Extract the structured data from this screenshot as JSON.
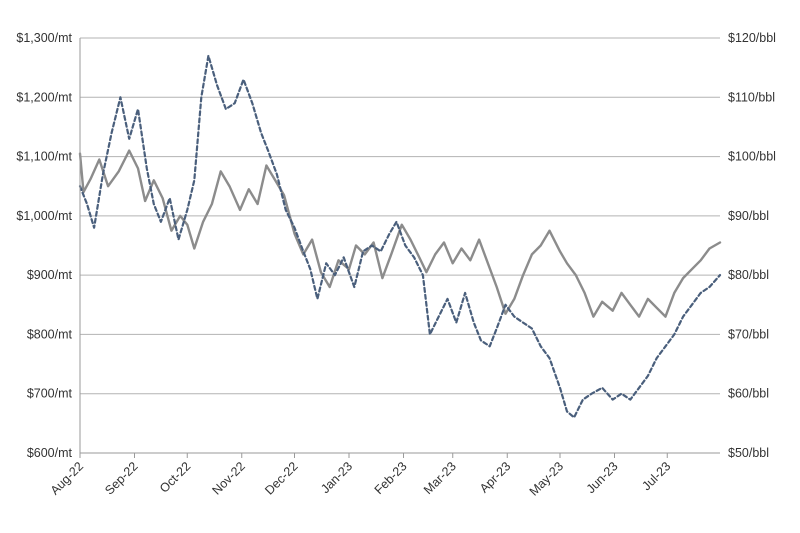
{
  "chart_data": {
    "type": "line",
    "title": "",
    "xlabel": "",
    "ylabel": "",
    "y2label": "",
    "x_tick_labels": [
      "Aug-22",
      "Sep-22",
      "Oct-22",
      "Nov-22",
      "Dec-22",
      "Jan-23",
      "Feb-23",
      "Mar-23",
      "Apr-23",
      "May-23",
      "Jun-23",
      "Jul-23"
    ],
    "x_range": [
      "2022-08-01",
      "2023-07-31"
    ],
    "y_left": {
      "ylim": [
        600,
        1300
      ],
      "tick_values": [
        600,
        700,
        800,
        900,
        1000,
        1100,
        1200,
        1300
      ],
      "tick_labels": [
        "$600/mt",
        "$700/mt",
        "$800/mt",
        "$900/mt",
        "$1,000/mt",
        "$1,100/mt",
        "$1,200/mt",
        "$1,300/mt"
      ]
    },
    "y_right": {
      "ylim": [
        50,
        120
      ],
      "tick_values": [
        50,
        60,
        70,
        80,
        90,
        100,
        110,
        120
      ],
      "tick_labels": [
        "$50/bbl",
        "$60/bbl",
        "$70/bbl",
        "$80/bbl",
        "$90/bbl",
        "$100/bbl",
        "$110/bbl",
        "$120/bbl"
      ]
    },
    "grid": true,
    "series": [
      {
        "style": "solid",
        "color": "#8c8c8c",
        "axis": "left",
        "points": [
          [
            "2022-08-01",
            1105
          ],
          [
            "2022-08-03",
            1040
          ],
          [
            "2022-08-07",
            1062
          ],
          [
            "2022-08-12",
            1095
          ],
          [
            "2022-08-17",
            1050
          ],
          [
            "2022-08-23",
            1075
          ],
          [
            "2022-08-29",
            1110
          ],
          [
            "2022-09-03",
            1080
          ],
          [
            "2022-09-07",
            1025
          ],
          [
            "2022-09-12",
            1060
          ],
          [
            "2022-09-17",
            1030
          ],
          [
            "2022-09-22",
            975
          ],
          [
            "2022-09-27",
            1000
          ],
          [
            "2022-10-01",
            985
          ],
          [
            "2022-10-05",
            945
          ],
          [
            "2022-10-10",
            990
          ],
          [
            "2022-10-15",
            1020
          ],
          [
            "2022-10-20",
            1075
          ],
          [
            "2022-10-25",
            1050
          ],
          [
            "2022-10-31",
            1010
          ],
          [
            "2022-11-05",
            1045
          ],
          [
            "2022-11-10",
            1020
          ],
          [
            "2022-11-15",
            1085
          ],
          [
            "2022-11-20",
            1060
          ],
          [
            "2022-11-25",
            1035
          ],
          [
            "2022-12-01",
            970
          ],
          [
            "2022-12-06",
            935
          ],
          [
            "2022-12-11",
            960
          ],
          [
            "2022-12-16",
            905
          ],
          [
            "2022-12-21",
            880
          ],
          [
            "2022-12-26",
            925
          ],
          [
            "2023-01-01",
            910
          ],
          [
            "2023-01-05",
            950
          ],
          [
            "2023-01-10",
            935
          ],
          [
            "2023-01-15",
            955
          ],
          [
            "2023-01-20",
            895
          ],
          [
            "2023-01-25",
            935
          ],
          [
            "2023-01-31",
            985
          ],
          [
            "2023-02-05",
            960
          ],
          [
            "2023-02-10",
            930
          ],
          [
            "2023-02-14",
            905
          ],
          [
            "2023-02-19",
            935
          ],
          [
            "2023-02-24",
            955
          ],
          [
            "2023-03-01",
            920
          ],
          [
            "2023-03-06",
            945
          ],
          [
            "2023-03-11",
            925
          ],
          [
            "2023-03-16",
            960
          ],
          [
            "2023-03-21",
            920
          ],
          [
            "2023-03-26",
            880
          ],
          [
            "2023-03-31",
            835
          ],
          [
            "2023-04-05",
            860
          ],
          [
            "2023-04-10",
            900
          ],
          [
            "2023-04-15",
            935
          ],
          [
            "2023-04-20",
            950
          ],
          [
            "2023-04-25",
            975
          ],
          [
            "2023-05-01",
            940
          ],
          [
            "2023-05-05",
            920
          ],
          [
            "2023-05-10",
            900
          ],
          [
            "2023-05-15",
            870
          ],
          [
            "2023-05-20",
            830
          ],
          [
            "2023-05-25",
            855
          ],
          [
            "2023-05-31",
            840
          ],
          [
            "2023-06-05",
            870
          ],
          [
            "2023-06-10",
            850
          ],
          [
            "2023-06-15",
            830
          ],
          [
            "2023-06-20",
            860
          ],
          [
            "2023-06-25",
            845
          ],
          [
            "2023-06-30",
            830
          ],
          [
            "2023-07-05",
            870
          ],
          [
            "2023-07-10",
            895
          ],
          [
            "2023-07-15",
            910
          ],
          [
            "2023-07-20",
            925
          ],
          [
            "2023-07-25",
            945
          ],
          [
            "2023-07-31",
            955
          ]
        ]
      },
      {
        "style": "dashed",
        "color": "#4a5f7c",
        "axis": "right",
        "points": [
          [
            "2022-08-01",
            95
          ],
          [
            "2022-08-05",
            92
          ],
          [
            "2022-08-09",
            88
          ],
          [
            "2022-08-14",
            97
          ],
          [
            "2022-08-19",
            104
          ],
          [
            "2022-08-24",
            110
          ],
          [
            "2022-08-29",
            103
          ],
          [
            "2022-09-03",
            108
          ],
          [
            "2022-09-08",
            98
          ],
          [
            "2022-09-12",
            92
          ],
          [
            "2022-09-16",
            89
          ],
          [
            "2022-09-21",
            93
          ],
          [
            "2022-09-26",
            86
          ],
          [
            "2022-10-01",
            91
          ],
          [
            "2022-10-05",
            96
          ],
          [
            "2022-10-09",
            110
          ],
          [
            "2022-10-13",
            117
          ],
          [
            "2022-10-18",
            112
          ],
          [
            "2022-10-23",
            108
          ],
          [
            "2022-10-28",
            109
          ],
          [
            "2022-11-02",
            113
          ],
          [
            "2022-11-07",
            109
          ],
          [
            "2022-11-12",
            104
          ],
          [
            "2022-11-16",
            101
          ],
          [
            "2022-11-21",
            97
          ],
          [
            "2022-11-26",
            91
          ],
          [
            "2022-12-01",
            88
          ],
          [
            "2022-12-06",
            84
          ],
          [
            "2022-12-10",
            81
          ],
          [
            "2022-12-14",
            76
          ],
          [
            "2022-12-19",
            82
          ],
          [
            "2022-12-24",
            80
          ],
          [
            "2022-12-29",
            83
          ],
          [
            "2023-01-04",
            78
          ],
          [
            "2023-01-09",
            84
          ],
          [
            "2023-01-14",
            85
          ],
          [
            "2023-01-19",
            84
          ],
          [
            "2023-01-24",
            87
          ],
          [
            "2023-01-28",
            89
          ],
          [
            "2023-02-02",
            85
          ],
          [
            "2023-02-07",
            83
          ],
          [
            "2023-02-12",
            80
          ],
          [
            "2023-02-16",
            70
          ],
          [
            "2023-02-21",
            73
          ],
          [
            "2023-02-26",
            76
          ],
          [
            "2023-03-03",
            72
          ],
          [
            "2023-03-08",
            77
          ],
          [
            "2023-03-13",
            72
          ],
          [
            "2023-03-17",
            69
          ],
          [
            "2023-03-22",
            68
          ],
          [
            "2023-03-26",
            71
          ],
          [
            "2023-03-31",
            75
          ],
          [
            "2023-04-05",
            73
          ],
          [
            "2023-04-10",
            72
          ],
          [
            "2023-04-15",
            71
          ],
          [
            "2023-04-20",
            68
          ],
          [
            "2023-04-25",
            66
          ],
          [
            "2023-05-01",
            61
          ],
          [
            "2023-05-05",
            57
          ],
          [
            "2023-05-09",
            56
          ],
          [
            "2023-05-14",
            59
          ],
          [
            "2023-05-19",
            60
          ],
          [
            "2023-05-25",
            61
          ],
          [
            "2023-05-31",
            59
          ],
          [
            "2023-06-05",
            60
          ],
          [
            "2023-06-10",
            59
          ],
          [
            "2023-06-15",
            61
          ],
          [
            "2023-06-20",
            63
          ],
          [
            "2023-06-25",
            66
          ],
          [
            "2023-06-30",
            68
          ],
          [
            "2023-07-05",
            70
          ],
          [
            "2023-07-10",
            73
          ],
          [
            "2023-07-15",
            75
          ],
          [
            "2023-07-20",
            77
          ],
          [
            "2023-07-25",
            78
          ],
          [
            "2023-07-31",
            80
          ]
        ]
      }
    ]
  }
}
